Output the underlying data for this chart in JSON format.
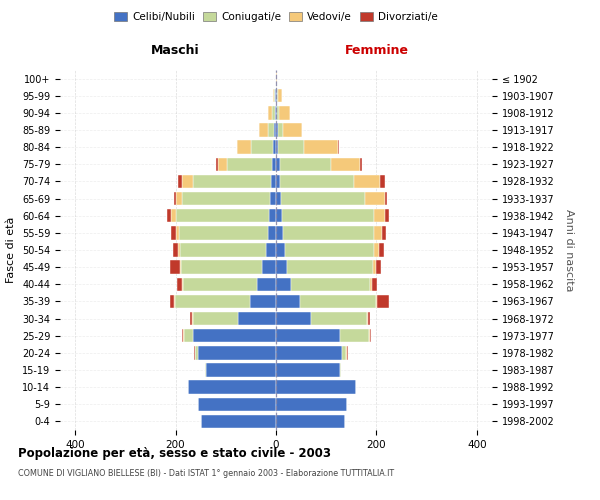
{
  "age_groups": [
    "0-4",
    "5-9",
    "10-14",
    "15-19",
    "20-24",
    "25-29",
    "30-34",
    "35-39",
    "40-44",
    "45-49",
    "50-54",
    "55-59",
    "60-64",
    "65-69",
    "70-74",
    "75-79",
    "80-84",
    "85-89",
    "90-94",
    "95-99",
    "100+"
  ],
  "birth_years": [
    "1998-2002",
    "1993-1997",
    "1988-1992",
    "1983-1987",
    "1978-1982",
    "1973-1977",
    "1968-1972",
    "1963-1967",
    "1958-1962",
    "1953-1957",
    "1948-1952",
    "1943-1947",
    "1938-1942",
    "1933-1937",
    "1928-1932",
    "1923-1927",
    "1918-1922",
    "1913-1917",
    "1908-1912",
    "1903-1907",
    "≤ 1902"
  ],
  "male_celibe": [
    150,
    155,
    175,
    140,
    155,
    165,
    75,
    52,
    38,
    28,
    20,
    15,
    14,
    12,
    10,
    8,
    5,
    3,
    2,
    1,
    0
  ],
  "male_coniugato": [
    0,
    0,
    0,
    1,
    6,
    18,
    90,
    150,
    148,
    162,
    172,
    178,
    185,
    175,
    155,
    90,
    45,
    12,
    5,
    2,
    0
  ],
  "male_vedovo": [
    0,
    0,
    0,
    0,
    1,
    2,
    2,
    2,
    2,
    2,
    4,
    7,
    10,
    12,
    22,
    18,
    28,
    18,
    8,
    3,
    0
  ],
  "male_divorziato": [
    0,
    0,
    0,
    0,
    2,
    2,
    4,
    7,
    10,
    20,
    10,
    9,
    7,
    4,
    8,
    4,
    0,
    0,
    0,
    0,
    0
  ],
  "female_nubile": [
    138,
    142,
    160,
    128,
    132,
    128,
    70,
    48,
    30,
    22,
    18,
    14,
    12,
    10,
    7,
    7,
    4,
    3,
    2,
    1,
    0
  ],
  "female_coniugata": [
    0,
    0,
    0,
    1,
    8,
    58,
    112,
    152,
    157,
    172,
    177,
    182,
    183,
    168,
    148,
    102,
    52,
    10,
    4,
    2,
    0
  ],
  "female_vedova": [
    0,
    0,
    0,
    0,
    2,
    2,
    2,
    2,
    4,
    6,
    10,
    16,
    22,
    38,
    52,
    58,
    68,
    38,
    22,
    8,
    2
  ],
  "female_divorziata": [
    0,
    0,
    0,
    0,
    2,
    2,
    4,
    22,
    10,
    10,
    10,
    7,
    7,
    4,
    10,
    4,
    2,
    0,
    0,
    0,
    0
  ],
  "colors": {
    "celibe_nubile": "#4472C4",
    "coniugato": "#C5D99B",
    "vedovo": "#F5C97A",
    "divorziato": "#C0392B"
  },
  "xlim": [
    -430,
    430
  ],
  "xticks": [
    -400,
    -200,
    0,
    200,
    400
  ],
  "xticklabels": [
    "400",
    "200",
    "0",
    "200",
    "400"
  ],
  "title": "Popolazione per età, sesso e stato civile - 2003",
  "subtitle": "COMUNE DI VIGLIANO BIELLESE (BI) - Dati ISTAT 1° gennaio 2003 - Elaborazione TUTTITALIA.IT",
  "ylabel_left": "Fasce di età",
  "ylabel_right": "Anni di nascita",
  "label_maschi": "Maschi",
  "label_femmine": "Femmine",
  "legend_labels": [
    "Celibi/Nubili",
    "Coniugati/e",
    "Vedovi/e",
    "Divorziati/e"
  ]
}
